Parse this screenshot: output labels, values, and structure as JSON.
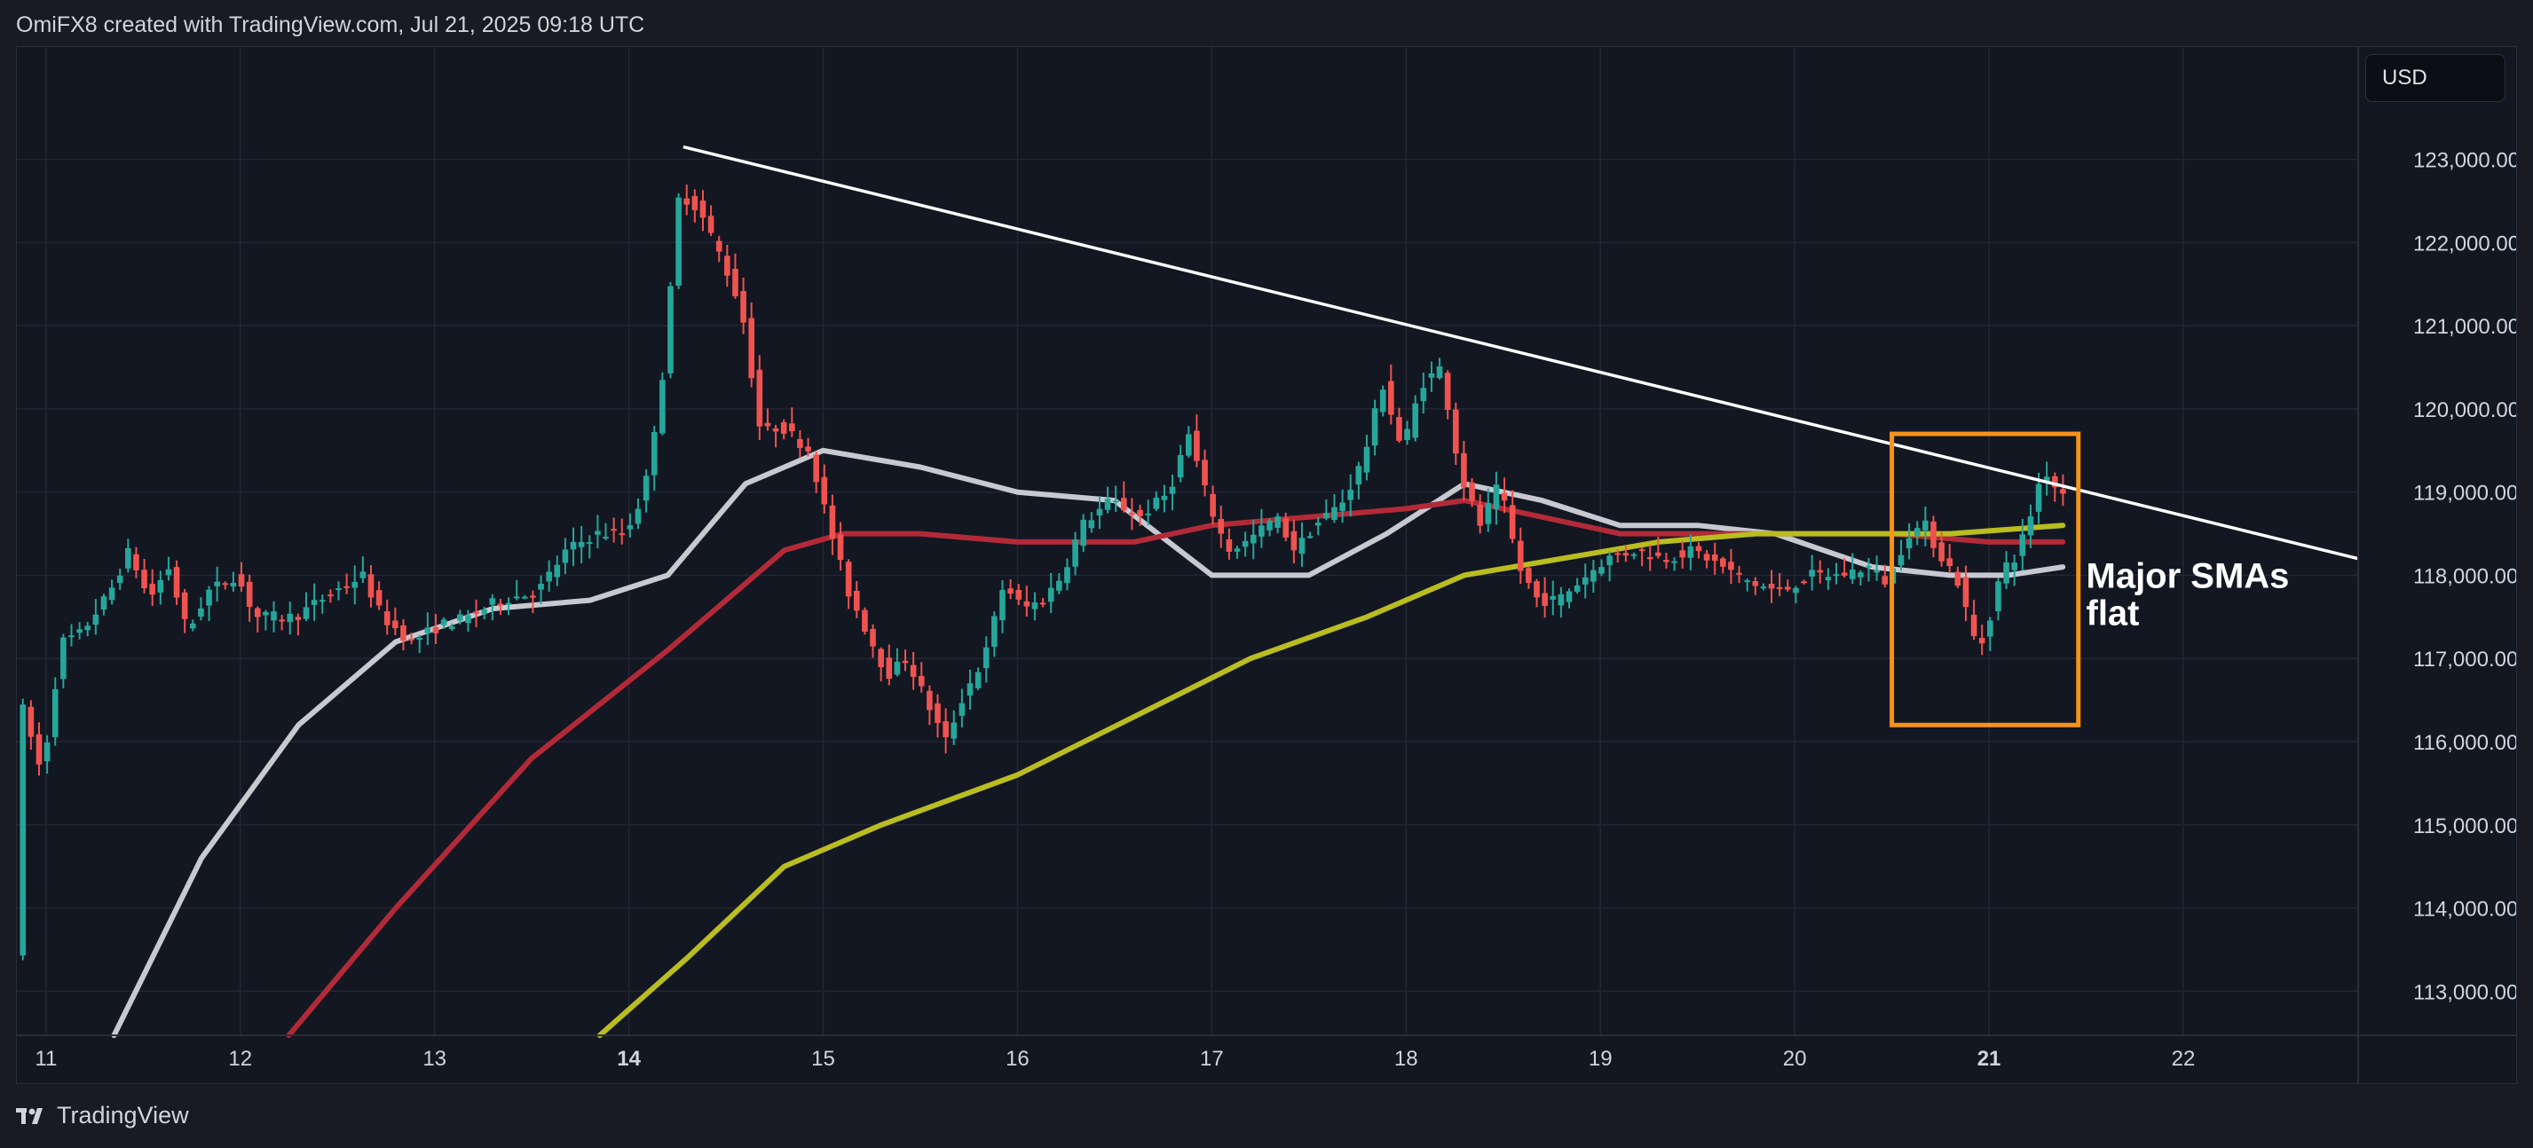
{
  "header": {
    "credit": "OmiFX8 created with TradingView.com, Jul 21, 2025 09:18 UTC"
  },
  "currency": "USD",
  "footer": {
    "brand": "TradingView"
  },
  "chart_data": {
    "type": "candlestick",
    "instrument_currency": "USD",
    "x_axis": {
      "tick_labels": [
        "11",
        "12",
        "13",
        "14",
        "15",
        "16",
        "17",
        "18",
        "19",
        "20",
        "21",
        "22"
      ],
      "bold_ticks": [
        "14",
        "21"
      ],
      "range_days": [
        10.85,
        22.9
      ]
    },
    "y_axis": {
      "tick_labels": [
        "113,000.00",
        "114,000.00",
        "115,000.00",
        "116,000.00",
        "117,000.00",
        "118,000.00",
        "119,000.00",
        "120,000.00",
        "121,000.00",
        "122,000.00",
        "123,000.00"
      ],
      "ticks": [
        113000,
        114000,
        115000,
        116000,
        117000,
        118000,
        119000,
        120000,
        121000,
        122000,
        123000
      ],
      "range": [
        112470,
        124350
      ],
      "position": "right"
    },
    "grid": true,
    "colors": {
      "background": "#131722",
      "up": "#26a69a",
      "down": "#ef5350",
      "grid": "#232734",
      "sma_white": "#c7c9d1",
      "sma_red": "#b22a38",
      "sma_yellow": "#b9bd1f",
      "trendline": "#ffffff",
      "highlight_box": "#f7931a"
    },
    "price_path": [
      [
        10.86,
        113500
      ],
      [
        10.9,
        116400
      ],
      [
        11.0,
        115600
      ],
      [
        11.1,
        117200
      ],
      [
        11.2,
        117300
      ],
      [
        11.35,
        117800
      ],
      [
        11.45,
        118300
      ],
      [
        11.55,
        117700
      ],
      [
        11.65,
        118100
      ],
      [
        11.75,
        117300
      ],
      [
        11.85,
        117800
      ],
      [
        12.0,
        118000
      ],
      [
        12.1,
        117500
      ],
      [
        12.3,
        117500
      ],
      [
        12.5,
        117800
      ],
      [
        12.65,
        118000
      ],
      [
        12.75,
        117500
      ],
      [
        12.9,
        117200
      ],
      [
        13.05,
        117400
      ],
      [
        13.2,
        117500
      ],
      [
        13.35,
        117700
      ],
      [
        13.55,
        117800
      ],
      [
        13.7,
        118300
      ],
      [
        13.85,
        118500
      ],
      [
        14.0,
        118500
      ],
      [
        14.1,
        119000
      ],
      [
        14.2,
        120500
      ],
      [
        14.28,
        122600
      ],
      [
        14.38,
        122400
      ],
      [
        14.5,
        121800
      ],
      [
        14.6,
        121200
      ],
      [
        14.7,
        119700
      ],
      [
        14.8,
        119800
      ],
      [
        14.95,
        119500
      ],
      [
        15.05,
        118600
      ],
      [
        15.15,
        117800
      ],
      [
        15.25,
        117300
      ],
      [
        15.35,
        116800
      ],
      [
        15.45,
        117000
      ],
      [
        15.55,
        116500
      ],
      [
        15.65,
        116000
      ],
      [
        15.75,
        116600
      ],
      [
        15.85,
        117000
      ],
      [
        15.95,
        117900
      ],
      [
        16.05,
        117600
      ],
      [
        16.15,
        117700
      ],
      [
        16.25,
        118000
      ],
      [
        16.35,
        118600
      ],
      [
        16.5,
        118900
      ],
      [
        16.65,
        118700
      ],
      [
        16.8,
        119000
      ],
      [
        16.9,
        119700
      ],
      [
        17.0,
        118900
      ],
      [
        17.1,
        118300
      ],
      [
        17.2,
        118400
      ],
      [
        17.35,
        118700
      ],
      [
        17.45,
        118300
      ],
      [
        17.55,
        118600
      ],
      [
        17.7,
        118900
      ],
      [
        17.8,
        119400
      ],
      [
        17.9,
        120300
      ],
      [
        18.0,
        119500
      ],
      [
        18.1,
        120300
      ],
      [
        18.2,
        120500
      ],
      [
        18.3,
        119200
      ],
      [
        18.4,
        118600
      ],
      [
        18.5,
        119100
      ],
      [
        18.6,
        118100
      ],
      [
        18.7,
        117700
      ],
      [
        18.8,
        117700
      ],
      [
        18.95,
        118000
      ],
      [
        19.05,
        118200
      ],
      [
        19.2,
        118300
      ],
      [
        19.35,
        118200
      ],
      [
        19.5,
        118300
      ],
      [
        19.65,
        118100
      ],
      [
        19.8,
        117900
      ],
      [
        19.95,
        117800
      ],
      [
        20.1,
        118000
      ],
      [
        20.25,
        118000
      ],
      [
        20.4,
        118100
      ],
      [
        20.5,
        117900
      ],
      [
        20.6,
        118500
      ],
      [
        20.7,
        118600
      ],
      [
        20.75,
        118300
      ],
      [
        20.85,
        118000
      ],
      [
        20.95,
        117200
      ],
      [
        21.0,
        117200
      ],
      [
        21.05,
        117800
      ],
      [
        21.1,
        118100
      ],
      [
        21.15,
        118200
      ],
      [
        21.22,
        118600
      ],
      [
        21.3,
        119300
      ],
      [
        21.38,
        119000
      ]
    ],
    "sma_series": [
      {
        "color_key": "sma_white",
        "points": [
          [
            11.35,
            112470
          ],
          [
            11.8,
            114600
          ],
          [
            12.3,
            116200
          ],
          [
            12.8,
            117200
          ],
          [
            13.3,
            117600
          ],
          [
            13.8,
            117700
          ],
          [
            14.2,
            118000
          ],
          [
            14.6,
            119100
          ],
          [
            15.0,
            119500
          ],
          [
            15.5,
            119300
          ],
          [
            16.0,
            119000
          ],
          [
            16.5,
            118900
          ],
          [
            17.0,
            118000
          ],
          [
            17.5,
            118000
          ],
          [
            17.9,
            118500
          ],
          [
            18.3,
            119100
          ],
          [
            18.7,
            118900
          ],
          [
            19.1,
            118600
          ],
          [
            19.5,
            118600
          ],
          [
            19.9,
            118500
          ],
          [
            20.4,
            118100
          ],
          [
            20.8,
            118000
          ],
          [
            21.1,
            118000
          ],
          [
            21.38,
            118100
          ]
        ]
      },
      {
        "color_key": "sma_red",
        "points": [
          [
            12.25,
            112470
          ],
          [
            12.8,
            114000
          ],
          [
            13.5,
            115800
          ],
          [
            14.2,
            117100
          ],
          [
            14.8,
            118300
          ],
          [
            15.1,
            118500
          ],
          [
            15.5,
            118500
          ],
          [
            16.0,
            118400
          ],
          [
            16.6,
            118400
          ],
          [
            17.0,
            118600
          ],
          [
            17.5,
            118700
          ],
          [
            18.0,
            118800
          ],
          [
            18.3,
            118900
          ],
          [
            18.7,
            118700
          ],
          [
            19.1,
            118500
          ],
          [
            19.5,
            118500
          ],
          [
            20.0,
            118500
          ],
          [
            20.5,
            118500
          ],
          [
            21.0,
            118400
          ],
          [
            21.38,
            118400
          ]
        ]
      },
      {
        "color_key": "sma_yellow",
        "points": [
          [
            13.85,
            112470
          ],
          [
            14.3,
            113400
          ],
          [
            14.8,
            114500
          ],
          [
            15.3,
            115000
          ],
          [
            16.0,
            115600
          ],
          [
            16.6,
            116300
          ],
          [
            17.2,
            117000
          ],
          [
            17.8,
            117500
          ],
          [
            18.3,
            118000
          ],
          [
            18.8,
            118200
          ],
          [
            19.3,
            118400
          ],
          [
            19.8,
            118500
          ],
          [
            20.3,
            118500
          ],
          [
            20.8,
            118500
          ],
          [
            21.38,
            118600
          ]
        ]
      }
    ],
    "trendline": {
      "start": [
        14.28,
        123150
      ],
      "end": [
        22.9,
        118200
      ]
    },
    "highlight_box": {
      "x": [
        20.5,
        21.46
      ],
      "y": [
        116200,
        119700
      ]
    },
    "annotations": [
      {
        "lines": [
          "Major SMAs",
          "flat"
        ],
        "anchor": [
          21.5,
          118150
        ]
      }
    ]
  }
}
